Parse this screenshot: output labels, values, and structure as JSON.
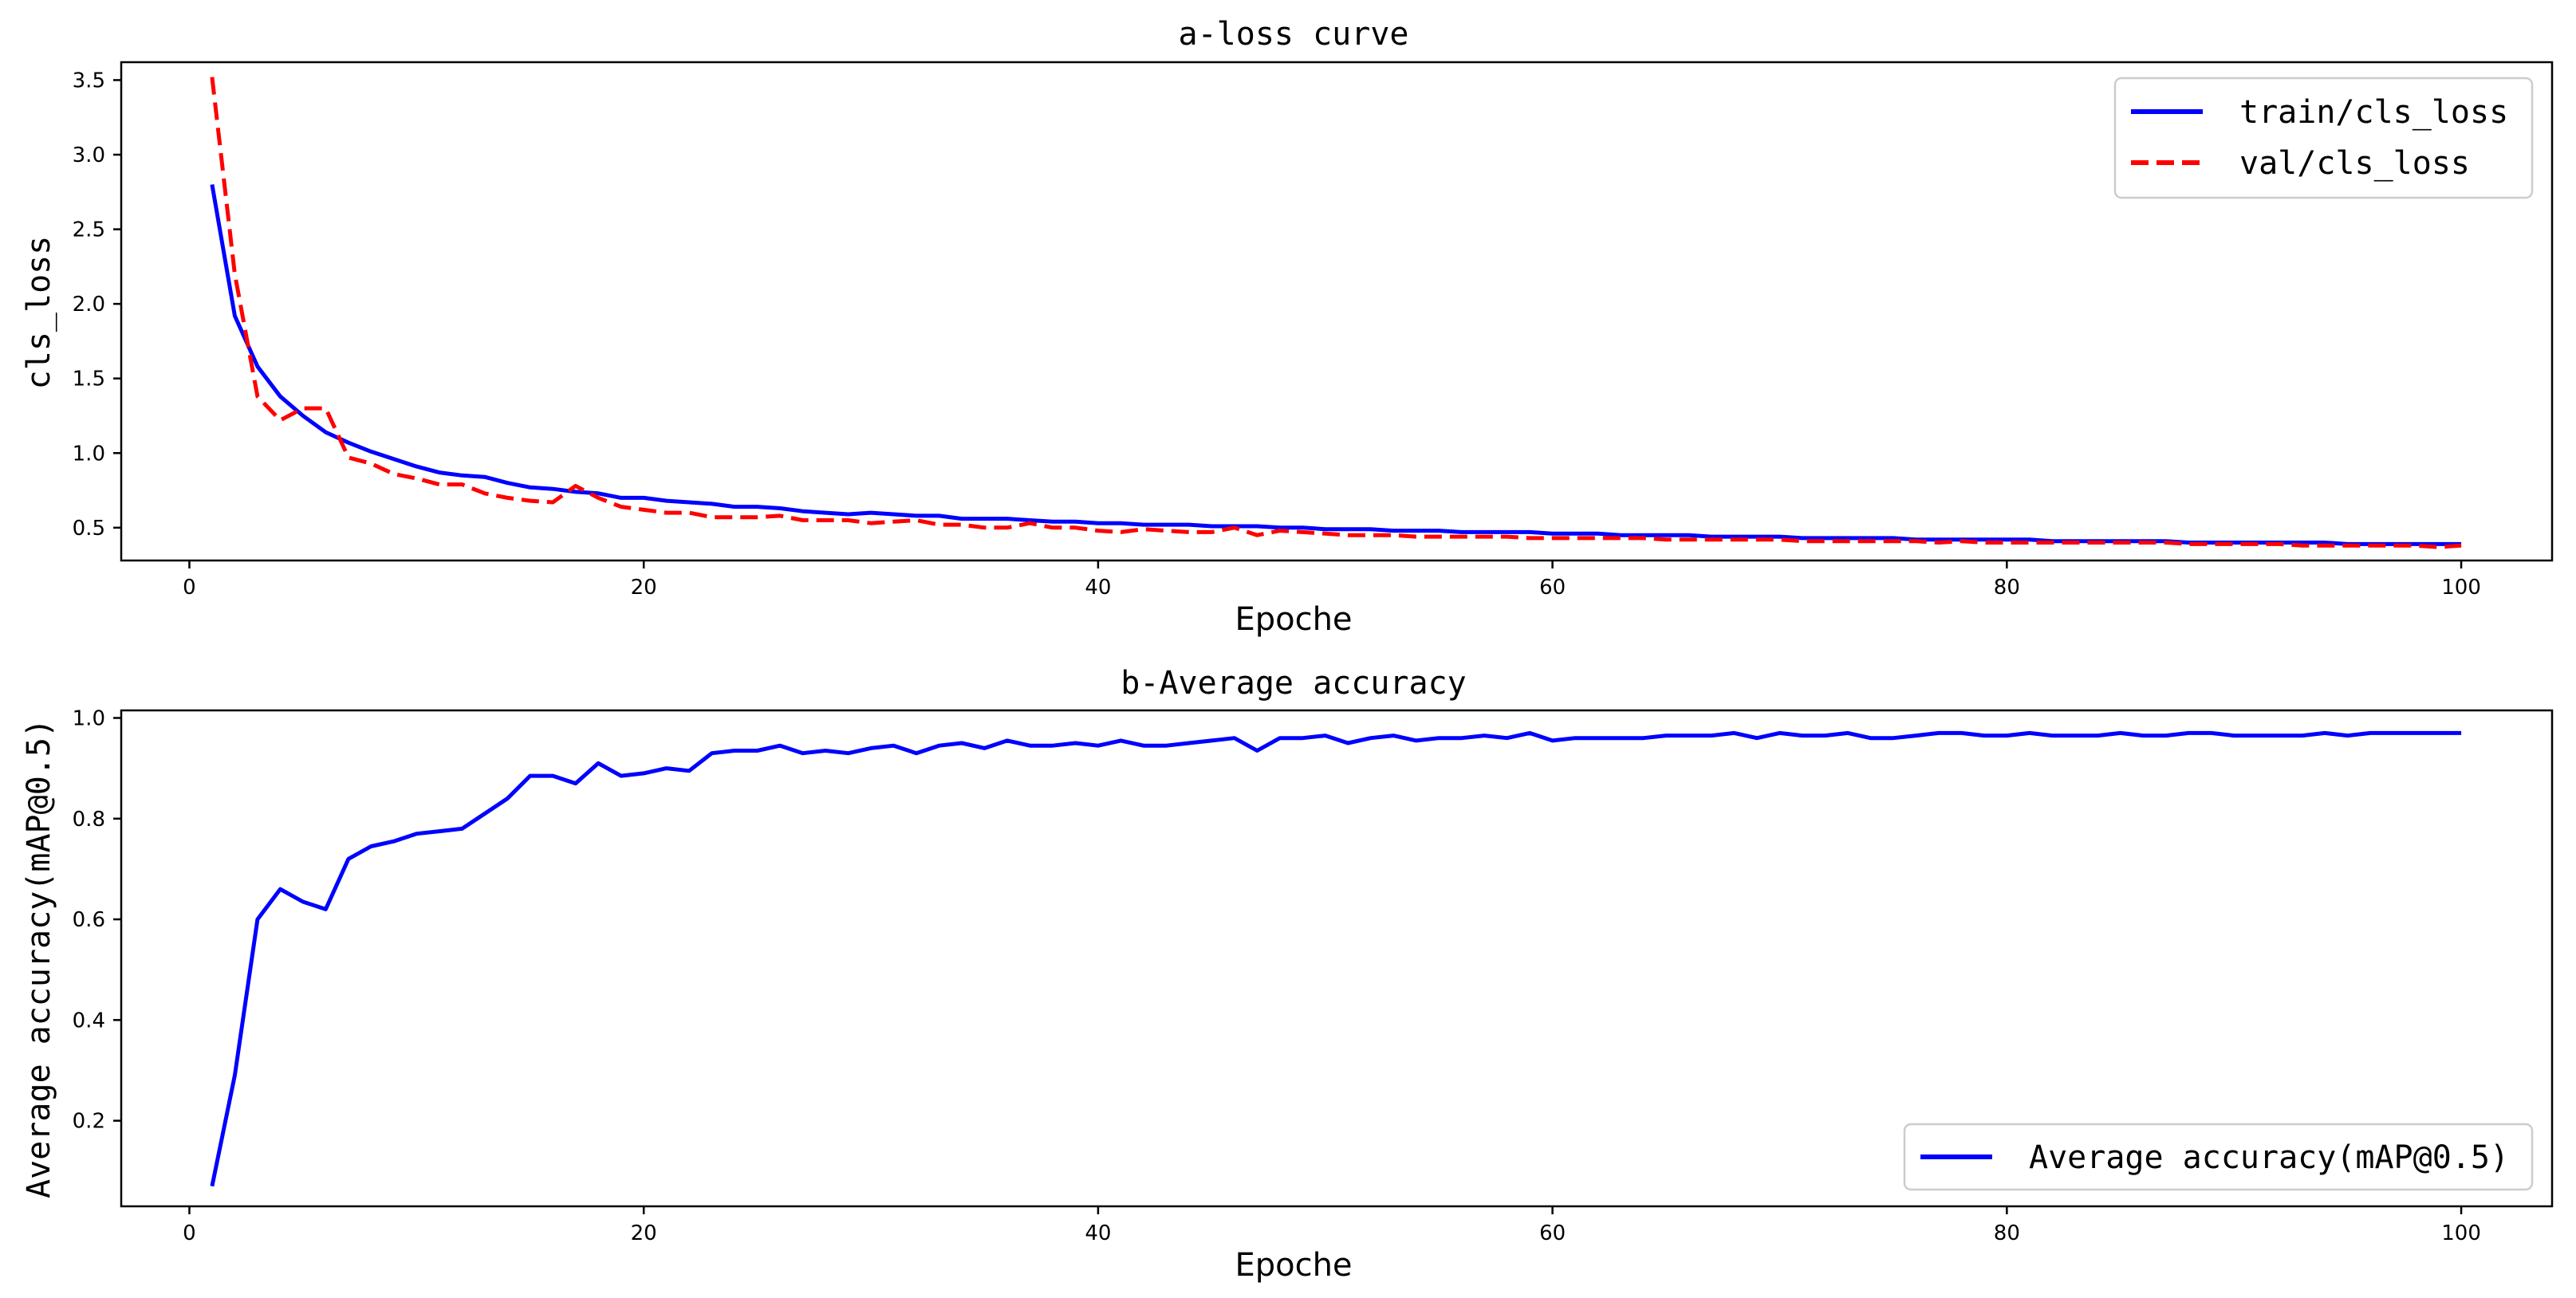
{
  "chart_data": [
    {
      "type": "line",
      "title": "a-loss curve",
      "xlabel": "Epoche",
      "ylabel": "cls_loss",
      "xlim": [
        -3,
        104
      ],
      "ylim": [
        0.28,
        3.62
      ],
      "xticks": [
        0,
        20,
        40,
        60,
        80,
        100
      ],
      "yticks": [
        0.5,
        1.0,
        1.5,
        2.0,
        2.5,
        3.0,
        3.5
      ],
      "grid": false,
      "legend_position": "top-right",
      "series": [
        {
          "name": "train/cls_loss",
          "color": "#0000ff",
          "style": "solid",
          "x": [
            1,
            2,
            3,
            4,
            5,
            6,
            7,
            8,
            9,
            10,
            11,
            12,
            13,
            14,
            15,
            16,
            17,
            18,
            19,
            20,
            21,
            22,
            23,
            24,
            25,
            26,
            27,
            28,
            29,
            30,
            31,
            32,
            33,
            34,
            35,
            36,
            37,
            38,
            39,
            40,
            41,
            42,
            43,
            44,
            45,
            46,
            47,
            48,
            49,
            50,
            51,
            52,
            53,
            54,
            55,
            56,
            57,
            58,
            59,
            60,
            61,
            62,
            63,
            64,
            65,
            66,
            67,
            68,
            69,
            70,
            71,
            72,
            73,
            74,
            75,
            76,
            77,
            78,
            79,
            80,
            81,
            82,
            83,
            84,
            85,
            86,
            87,
            88,
            89,
            90,
            91,
            92,
            93,
            94,
            95,
            96,
            97,
            98,
            99,
            100
          ],
          "values": [
            2.8,
            1.92,
            1.58,
            1.38,
            1.25,
            1.14,
            1.07,
            1.01,
            0.96,
            0.91,
            0.87,
            0.85,
            0.84,
            0.8,
            0.77,
            0.76,
            0.74,
            0.73,
            0.7,
            0.7,
            0.68,
            0.67,
            0.66,
            0.64,
            0.64,
            0.63,
            0.61,
            0.6,
            0.59,
            0.6,
            0.59,
            0.58,
            0.58,
            0.56,
            0.56,
            0.56,
            0.55,
            0.54,
            0.54,
            0.53,
            0.53,
            0.52,
            0.52,
            0.52,
            0.51,
            0.51,
            0.51,
            0.5,
            0.5,
            0.49,
            0.49,
            0.49,
            0.48,
            0.48,
            0.48,
            0.47,
            0.47,
            0.47,
            0.47,
            0.46,
            0.46,
            0.46,
            0.45,
            0.45,
            0.45,
            0.45,
            0.44,
            0.44,
            0.44,
            0.44,
            0.43,
            0.43,
            0.43,
            0.43,
            0.43,
            0.42,
            0.42,
            0.42,
            0.42,
            0.42,
            0.42,
            0.41,
            0.41,
            0.41,
            0.41,
            0.41,
            0.41,
            0.4,
            0.4,
            0.4,
            0.4,
            0.4,
            0.4,
            0.4,
            0.39,
            0.39,
            0.39,
            0.39,
            0.39,
            0.39
          ]
        },
        {
          "name": "val/cls_loss",
          "color": "#ff0000",
          "style": "dashed",
          "x": [
            1,
            2,
            3,
            4,
            5,
            6,
            7,
            8,
            9,
            10,
            11,
            12,
            13,
            14,
            15,
            16,
            17,
            18,
            19,
            20,
            21,
            22,
            23,
            24,
            25,
            26,
            27,
            28,
            29,
            30,
            31,
            32,
            33,
            34,
            35,
            36,
            37,
            38,
            39,
            40,
            41,
            42,
            43,
            44,
            45,
            46,
            47,
            48,
            49,
            50,
            51,
            52,
            53,
            54,
            55,
            56,
            57,
            58,
            59,
            60,
            61,
            62,
            63,
            64,
            65,
            66,
            67,
            68,
            69,
            70,
            71,
            72,
            73,
            74,
            75,
            76,
            77,
            78,
            79,
            80,
            81,
            82,
            83,
            84,
            85,
            86,
            87,
            88,
            89,
            90,
            91,
            92,
            93,
            94,
            95,
            96,
            97,
            98,
            99,
            100
          ],
          "values": [
            3.52,
            2.2,
            1.38,
            1.22,
            1.3,
            1.3,
            0.97,
            0.93,
            0.86,
            0.83,
            0.79,
            0.79,
            0.73,
            0.7,
            0.68,
            0.67,
            0.78,
            0.7,
            0.64,
            0.62,
            0.6,
            0.6,
            0.57,
            0.57,
            0.57,
            0.58,
            0.55,
            0.55,
            0.55,
            0.53,
            0.54,
            0.55,
            0.52,
            0.52,
            0.5,
            0.5,
            0.53,
            0.5,
            0.5,
            0.48,
            0.47,
            0.49,
            0.48,
            0.47,
            0.47,
            0.5,
            0.45,
            0.48,
            0.47,
            0.46,
            0.45,
            0.45,
            0.45,
            0.44,
            0.44,
            0.44,
            0.44,
            0.44,
            0.43,
            0.43,
            0.43,
            0.43,
            0.43,
            0.43,
            0.42,
            0.42,
            0.42,
            0.42,
            0.42,
            0.42,
            0.41,
            0.41,
            0.41,
            0.41,
            0.41,
            0.41,
            0.4,
            0.41,
            0.4,
            0.4,
            0.4,
            0.4,
            0.4,
            0.4,
            0.4,
            0.4,
            0.4,
            0.39,
            0.39,
            0.39,
            0.39,
            0.39,
            0.38,
            0.38,
            0.38,
            0.38,
            0.38,
            0.38,
            0.37,
            0.38
          ]
        }
      ]
    },
    {
      "type": "line",
      "title": "b-Average accuracy",
      "xlabel": "Epoche",
      "ylabel": "Average accuracy(mAP@0.5)",
      "xlim": [
        -3,
        104
      ],
      "ylim": [
        0.03,
        1.015
      ],
      "xticks": [
        0,
        20,
        40,
        60,
        80,
        100
      ],
      "yticks": [
        0.2,
        0.4,
        0.6,
        0.8,
        1.0
      ],
      "grid": false,
      "legend_position": "bottom-right",
      "series": [
        {
          "name": "Average accuracy(mAP@0.5)",
          "color": "#0000ff",
          "style": "solid",
          "x": [
            1,
            2,
            3,
            4,
            5,
            6,
            7,
            8,
            9,
            10,
            11,
            12,
            13,
            14,
            15,
            16,
            17,
            18,
            19,
            20,
            21,
            22,
            23,
            24,
            25,
            26,
            27,
            28,
            29,
            30,
            31,
            32,
            33,
            34,
            35,
            36,
            37,
            38,
            39,
            40,
            41,
            42,
            43,
            44,
            45,
            46,
            47,
            48,
            49,
            50,
            51,
            52,
            53,
            54,
            55,
            56,
            57,
            58,
            59,
            60,
            61,
            62,
            63,
            64,
            65,
            66,
            67,
            68,
            69,
            70,
            71,
            72,
            73,
            74,
            75,
            76,
            77,
            78,
            79,
            80,
            81,
            82,
            83,
            84,
            85,
            86,
            87,
            88,
            89,
            90,
            91,
            92,
            93,
            94,
            95,
            96,
            97,
            98,
            99,
            100
          ],
          "values": [
            0.07,
            0.29,
            0.6,
            0.66,
            0.635,
            0.62,
            0.72,
            0.745,
            0.755,
            0.77,
            0.775,
            0.78,
            0.81,
            0.84,
            0.885,
            0.885,
            0.87,
            0.91,
            0.885,
            0.89,
            0.9,
            0.895,
            0.93,
            0.935,
            0.935,
            0.945,
            0.93,
            0.935,
            0.93,
            0.94,
            0.945,
            0.93,
            0.945,
            0.95,
            0.94,
            0.955,
            0.945,
            0.945,
            0.95,
            0.945,
            0.955,
            0.945,
            0.945,
            0.95,
            0.955,
            0.96,
            0.935,
            0.96,
            0.96,
            0.965,
            0.95,
            0.96,
            0.965,
            0.955,
            0.96,
            0.96,
            0.965,
            0.96,
            0.97,
            0.955,
            0.96,
            0.96,
            0.96,
            0.96,
            0.965,
            0.965,
            0.965,
            0.97,
            0.96,
            0.97,
            0.965,
            0.965,
            0.97,
            0.96,
            0.96,
            0.965,
            0.97,
            0.97,
            0.965,
            0.965,
            0.97,
            0.965,
            0.965,
            0.965,
            0.97,
            0.965,
            0.965,
            0.97,
            0.97,
            0.965,
            0.965,
            0.965,
            0.965,
            0.97,
            0.965,
            0.97,
            0.97,
            0.97,
            0.97,
            0.97
          ]
        }
      ]
    }
  ]
}
